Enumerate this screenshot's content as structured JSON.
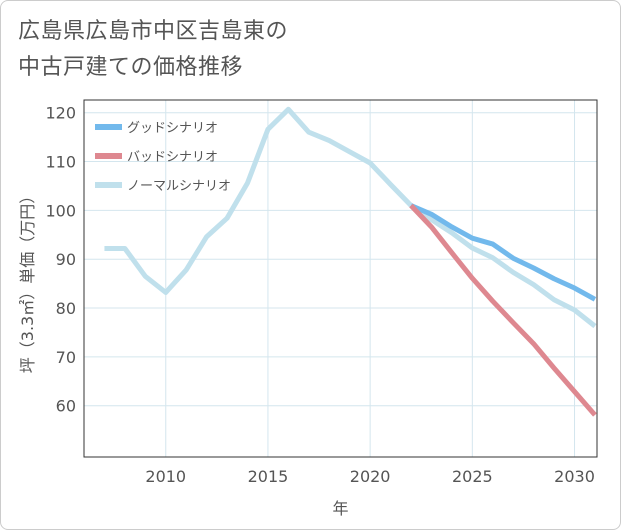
{
  "title_lines": [
    "広島県広島市中区吉島東の",
    "中古戸建ての価格推移"
  ],
  "chart_data": {
    "type": "line",
    "xlabel": "年",
    "ylabel": "坪（3.3㎡）単価（万円）",
    "xlim": [
      2006.0,
      2031.1
    ],
    "ylim": [
      49.5,
      122.6
    ],
    "xticks": [
      2010,
      2015,
      2020,
      2025,
      2030
    ],
    "yticks": [
      60,
      70,
      80,
      90,
      100,
      110,
      120
    ],
    "grid": true,
    "legend_position": "top-left",
    "series": [
      {
        "name": "グッドシナリオ",
        "color": "#72b9ec",
        "x": [
          2022,
          2023,
          2024,
          2025,
          2026,
          2027,
          2028,
          2029,
          2030,
          2031
        ],
        "y": [
          101.0,
          99.2,
          96.6,
          94.3,
          93.1,
          90.2,
          88.2,
          86.0,
          84.1,
          81.8
        ]
      },
      {
        "name": "バッドシナリオ",
        "color": "#de8890",
        "x": [
          2022,
          2023,
          2024,
          2025,
          2026,
          2027,
          2028,
          2029,
          2030,
          2031
        ],
        "y": [
          101.0,
          96.6,
          91.3,
          86.1,
          81.4,
          77.0,
          72.7,
          67.7,
          62.9,
          58.1
        ]
      },
      {
        "name": "ノーマルシナリオ",
        "color": "#c0e0ec",
        "x": [
          2007,
          2008,
          2009,
          2010,
          2011,
          2012,
          2013,
          2014,
          2015,
          2016,
          2017,
          2018,
          2019,
          2020,
          2021,
          2022,
          2023,
          2024,
          2025,
          2026,
          2027,
          2028,
          2029,
          2030,
          2031
        ],
        "y": [
          92.2,
          92.2,
          86.5,
          83.2,
          87.8,
          94.6,
          98.4,
          105.6,
          116.6,
          120.7,
          116.0,
          114.3,
          112.0,
          109.7,
          105.3,
          101.0,
          98.1,
          95.4,
          92.3,
          90.3,
          87.3,
          84.8,
          81.7,
          79.6,
          76.3
        ]
      }
    ]
  }
}
